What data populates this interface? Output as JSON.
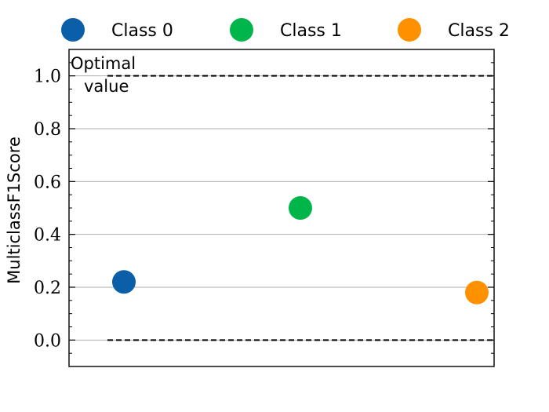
{
  "chart_data": {
    "type": "scatter",
    "ylabel": "MulticlassF1Score",
    "ylim": [
      -0.1,
      1.1
    ],
    "y_ticks": [
      0.0,
      0.2,
      0.4,
      0.6,
      0.8,
      1.0
    ],
    "y_tick_labels": [
      "0.0",
      "0.2",
      "0.4",
      "0.6",
      "0.8",
      "1.0"
    ],
    "grid": "horizontal",
    "legend_position": "top",
    "series": [
      {
        "name": "Class 0",
        "x": 0,
        "y": 0.22,
        "color": "#0b5ea8"
      },
      {
        "name": "Class 1",
        "x": 1,
        "y": 0.5,
        "color": "#00b64a"
      },
      {
        "name": "Class 2",
        "x": 2,
        "y": 0.18,
        "color": "#ff9100"
      }
    ],
    "reference_lines": [
      {
        "y": 1.0,
        "style": "dashed",
        "color": "#000000"
      },
      {
        "y": 0.0,
        "style": "dashed",
        "color": "#000000"
      }
    ],
    "annotation": {
      "lines": [
        "Optimal",
        "value"
      ]
    }
  }
}
